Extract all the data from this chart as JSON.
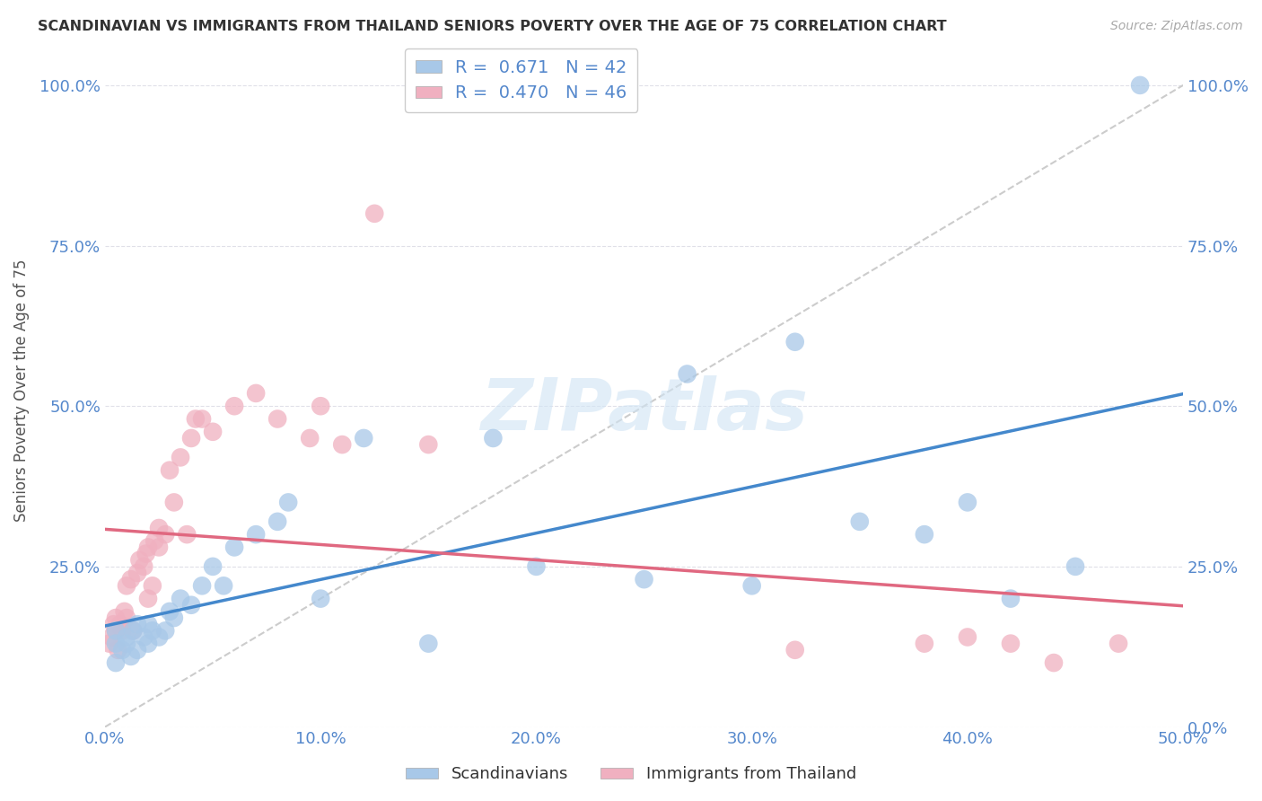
{
  "title": "SCANDINAVIAN VS IMMIGRANTS FROM THAILAND SENIORS POVERTY OVER THE AGE OF 75 CORRELATION CHART",
  "source": "Source: ZipAtlas.com",
  "ylabel_label": "Seniors Poverty Over the Age of 75",
  "background_color": "#ffffff",
  "grid_color": "#e0e0e8",
  "watermark_text": "ZIPatlas",
  "legend_r1": "R =  0.671   N = 42",
  "legend_r2": "R =  0.470   N = 46",
  "series1_label": "Scandinavians",
  "series2_label": "Immigrants from Thailand",
  "blue_color": "#a8c8e8",
  "pink_color": "#f0b0c0",
  "line_blue": "#4488cc",
  "line_pink": "#e06880",
  "diag_color": "#cccccc",
  "tick_color": "#5588cc",
  "xlabel_ticks": [
    "0.0%",
    "10.0%",
    "20.0%",
    "30.0%",
    "40.0%",
    "50.0%"
  ],
  "ylabel_ticks_left": [
    "",
    "25.0%",
    "50.0%",
    "75.0%",
    "100.0%"
  ],
  "ylabel_ticks_right": [
    "0.0%",
    "25.0%",
    "50.0%",
    "75.0%",
    "100.0%"
  ],
  "blue_dots_x": [
    0.5,
    0.5,
    0.5,
    0.8,
    1.0,
    1.0,
    1.2,
    1.3,
    1.5,
    1.5,
    1.8,
    2.0,
    2.0,
    2.2,
    2.5,
    2.8,
    3.0,
    3.2,
    3.5,
    4.0,
    4.5,
    5.0,
    5.5,
    6.0,
    7.0,
    8.0,
    8.5,
    10.0,
    12.0,
    15.0,
    18.0,
    20.0,
    25.0,
    27.0,
    30.0,
    32.0,
    35.0,
    38.0,
    40.0,
    42.0,
    45.0,
    48.0
  ],
  "blue_dots_y": [
    13.0,
    15.0,
    10.0,
    12.0,
    14.0,
    13.0,
    11.0,
    15.0,
    16.0,
    12.0,
    14.0,
    13.0,
    16.0,
    15.0,
    14.0,
    15.0,
    18.0,
    17.0,
    20.0,
    19.0,
    22.0,
    25.0,
    22.0,
    28.0,
    30.0,
    32.0,
    35.0,
    20.0,
    45.0,
    13.0,
    45.0,
    25.0,
    23.0,
    55.0,
    22.0,
    60.0,
    32.0,
    30.0,
    35.0,
    20.0,
    25.0,
    100.0
  ],
  "pink_dots_x": [
    0.2,
    0.3,
    0.4,
    0.5,
    0.5,
    0.6,
    0.7,
    0.8,
    0.9,
    1.0,
    1.0,
    1.2,
    1.3,
    1.5,
    1.6,
    1.8,
    1.9,
    2.0,
    2.0,
    2.2,
    2.3,
    2.5,
    2.5,
    2.8,
    3.0,
    3.2,
    3.5,
    3.8,
    4.0,
    4.2,
    4.5,
    5.0,
    6.0,
    7.0,
    8.0,
    9.5,
    10.0,
    11.0,
    12.5,
    15.0,
    32.0,
    38.0,
    40.0,
    42.0,
    44.0,
    47.0
  ],
  "pink_dots_y": [
    13.0,
    14.0,
    16.0,
    15.0,
    17.0,
    12.0,
    16.0,
    15.0,
    18.0,
    17.0,
    22.0,
    23.0,
    15.0,
    24.0,
    26.0,
    25.0,
    27.0,
    20.0,
    28.0,
    22.0,
    29.0,
    28.0,
    31.0,
    30.0,
    40.0,
    35.0,
    42.0,
    30.0,
    45.0,
    48.0,
    48.0,
    46.0,
    50.0,
    52.0,
    48.0,
    45.0,
    50.0,
    44.0,
    80.0,
    44.0,
    12.0,
    13.0,
    14.0,
    13.0,
    10.0,
    13.0
  ],
  "xmin": 0.0,
  "xmax": 50.0,
  "ymin": 0.0,
  "ymax": 105.0,
  "x_tick_vals": [
    0.0,
    10.0,
    20.0,
    30.0,
    40.0,
    50.0
  ],
  "y_tick_vals": [
    0.0,
    25.0,
    50.0,
    75.0,
    100.0
  ]
}
